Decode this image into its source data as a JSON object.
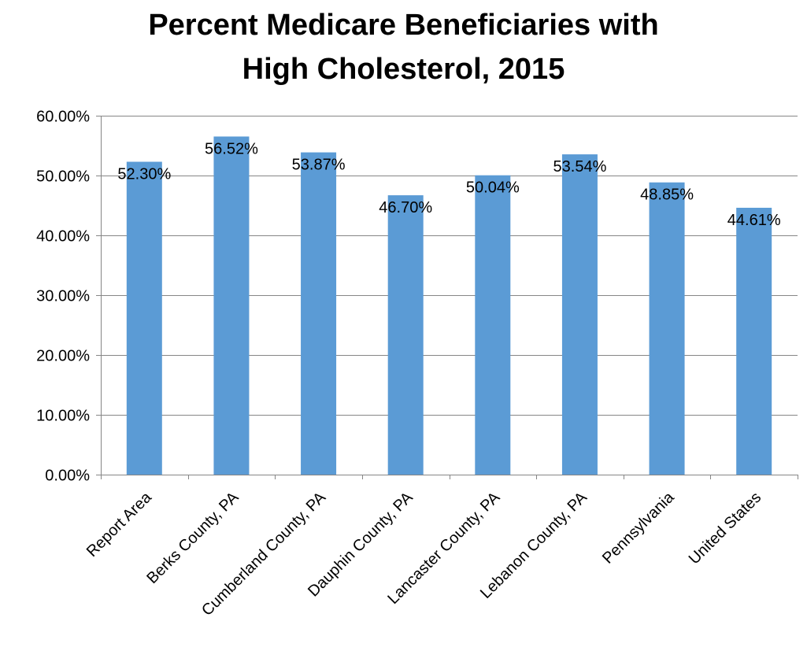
{
  "chart_data": {
    "type": "bar",
    "title_lines": [
      "Percent Medicare Beneficiaries with",
      "High Cholesterol, 2015"
    ],
    "categories": [
      "Report Area",
      "Berks County, PA",
      "Cumberland County, PA",
      "Dauphin County, PA",
      "Lancaster County, PA",
      "Lebanon County, PA",
      "Pennsylvania",
      "United States"
    ],
    "values": [
      52.3,
      56.52,
      53.87,
      46.7,
      50.04,
      53.54,
      48.85,
      44.61
    ],
    "data_labels": [
      "52.30%",
      "56.52%",
      "53.87%",
      "46.70%",
      "50.04%",
      "53.54%",
      "48.85%",
      "44.61%"
    ],
    "y_ticks": [
      0,
      10,
      20,
      30,
      40,
      50,
      60
    ],
    "y_tick_labels": [
      "0.00%",
      "10.00%",
      "20.00%",
      "30.00%",
      "40.00%",
      "50.00%",
      "60.00%"
    ],
    "ylim": [
      0,
      60
    ],
    "grid": true,
    "bar_color": "#5B9BD5",
    "gridline_color": "#868686",
    "axis_color": "#868686"
  }
}
